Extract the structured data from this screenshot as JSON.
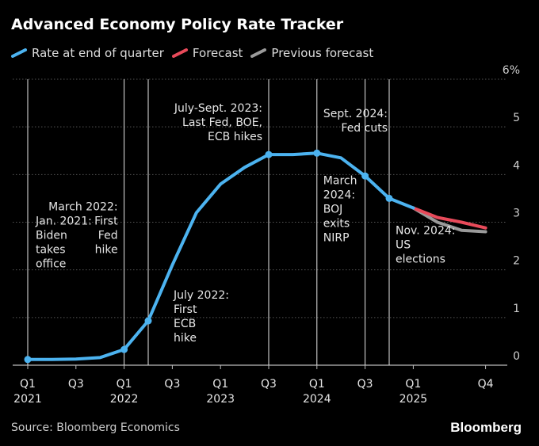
{
  "title": "Advanced Economy Policy Rate Tracker",
  "legend": [
    {
      "label": "Rate at end of quarter",
      "color": "#4cb3f0"
    },
    {
      "label": "Forecast",
      "color": "#e84a5a"
    },
    {
      "label": "Previous forecast",
      "color": "#9a9a9a"
    }
  ],
  "source": "Source: Bloomberg Economics",
  "brand": "Bloomberg",
  "chart_data": {
    "type": "line",
    "title": "Advanced Economy Policy Rate Tracker",
    "ylim": [
      0,
      6
    ],
    "y_ticks": [
      "0",
      "1",
      "2",
      "3",
      "4",
      "5",
      "6%"
    ],
    "y_tick_values": [
      0,
      1,
      2,
      3,
      4,
      5,
      6
    ],
    "quarters": [
      "Q1 2021",
      "Q2 2021",
      "Q3 2021",
      "Q4 2021",
      "Q1 2022",
      "Q2 2022",
      "Q3 2022",
      "Q4 2022",
      "Q1 2023",
      "Q2 2023",
      "Q3 2023",
      "Q4 2023",
      "Q1 2024",
      "Q2 2024",
      "Q3 2024",
      "Q4 2024",
      "Q1 2025",
      "Q2 2025",
      "Q3 2025",
      "Q4 2025"
    ],
    "x_tick_labels": [
      {
        "quarter": "Q1 2021",
        "line1": "Q1",
        "line2": "2021"
      },
      {
        "quarter": "Q3 2021",
        "line1": "Q3",
        "line2": ""
      },
      {
        "quarter": "Q1 2022",
        "line1": "Q1",
        "line2": "2022"
      },
      {
        "quarter": "Q3 2022",
        "line1": "Q3",
        "line2": ""
      },
      {
        "quarter": "Q1 2023",
        "line1": "Q1",
        "line2": "2023"
      },
      {
        "quarter": "Q3 2023",
        "line1": "Q3",
        "line2": ""
      },
      {
        "quarter": "Q1 2024",
        "line1": "Q1",
        "line2": "2024"
      },
      {
        "quarter": "Q3 2024",
        "line1": "Q3",
        "line2": ""
      },
      {
        "quarter": "Q1 2025",
        "line1": "Q1",
        "line2": "2025"
      },
      {
        "quarter": "Q4 2025",
        "line1": "Q4",
        "line2": ""
      }
    ],
    "series": [
      {
        "name": "Rate at end of quarter",
        "color": "#4cb3f0",
        "points": [
          {
            "x": "Q1 2021",
            "y": 0.12,
            "marker": true
          },
          {
            "x": "Q2 2021",
            "y": 0.12
          },
          {
            "x": "Q3 2021",
            "y": 0.13
          },
          {
            "x": "Q4 2021",
            "y": 0.16
          },
          {
            "x": "Q1 2022",
            "y": 0.33,
            "marker": true
          },
          {
            "x": "Q2 2022",
            "y": 0.93,
            "marker": true
          },
          {
            "x": "Q3 2022",
            "y": 2.1
          },
          {
            "x": "Q4 2022",
            "y": 3.2
          },
          {
            "x": "Q1 2023",
            "y": 3.8
          },
          {
            "x": "Q2 2023",
            "y": 4.15
          },
          {
            "x": "Q3 2023",
            "y": 4.42,
            "marker": true
          },
          {
            "x": "Q4 2023",
            "y": 4.42
          },
          {
            "x": "Q1 2024",
            "y": 4.45,
            "marker": true
          },
          {
            "x": "Q2 2024",
            "y": 4.35
          },
          {
            "x": "Q3 2024",
            "y": 3.97,
            "marker": true
          },
          {
            "x": "Q4 2024",
            "y": 3.5,
            "marker": true
          },
          {
            "x": "Q1 2025",
            "y": 3.3
          }
        ]
      },
      {
        "name": "Forecast",
        "color": "#e84a5a",
        "points": [
          {
            "x": "Q1 2025",
            "y": 3.3
          },
          {
            "x": "Q2 2025",
            "y": 3.1
          },
          {
            "x": "Q3 2025",
            "y": 3.0
          },
          {
            "x": "Q4 2025",
            "y": 2.88
          }
        ]
      },
      {
        "name": "Previous forecast",
        "color": "#9a9a9a",
        "points": [
          {
            "x": "Q1 2025",
            "y": 3.3
          },
          {
            "x": "Q2 2025",
            "y": 3.0
          },
          {
            "x": "Q3 2025",
            "y": 2.83
          },
          {
            "x": "Q4 2025",
            "y": 2.8
          }
        ]
      }
    ],
    "event_lines": [
      "Q1 2021",
      "Q1 2022",
      "Q2 2022",
      "Q3 2023",
      "Q1 2024",
      "Q3 2024",
      "Q4 2024"
    ],
    "annotations": [
      {
        "text": [
          "Jan. 2021:",
          "Biden",
          "takes",
          "office"
        ],
        "anchor": "Q1 2021",
        "dx": 10,
        "y": 2.95,
        "align": "start"
      },
      {
        "text": [
          "March 2022:",
          "First",
          "Fed",
          "hike"
        ],
        "anchor": "Q1 2022",
        "dx": -8,
        "y": 3.25,
        "align": "end"
      },
      {
        "text": [
          "July 2022:",
          "First",
          "ECB",
          "hike"
        ],
        "anchor": "Q2 2022",
        "dx": 32,
        "y": 1.4,
        "align": "start"
      },
      {
        "text": [
          "July-Sept. 2023:",
          "Last Fed, BOE,",
          "ECB hikes"
        ],
        "anchor": "Q3 2023",
        "dx": -8,
        "y": 5.32,
        "align": "end"
      },
      {
        "text": [
          "March",
          "2024:",
          "BOJ",
          "exits",
          "NIRP"
        ],
        "anchor": "Q1 2024",
        "dx": 8,
        "y": 3.8,
        "align": "start"
      },
      {
        "text": [
          "Sept. 2024:",
          "Fed cuts"
        ],
        "anchor": "Q4 2024",
        "dx": -2,
        "y": 5.2,
        "align": "end"
      },
      {
        "text": [
          "Nov. 2024:",
          "US",
          "elections"
        ],
        "anchor": "Q4 2024",
        "dx": 8,
        "y": 2.75,
        "align": "start"
      }
    ]
  }
}
